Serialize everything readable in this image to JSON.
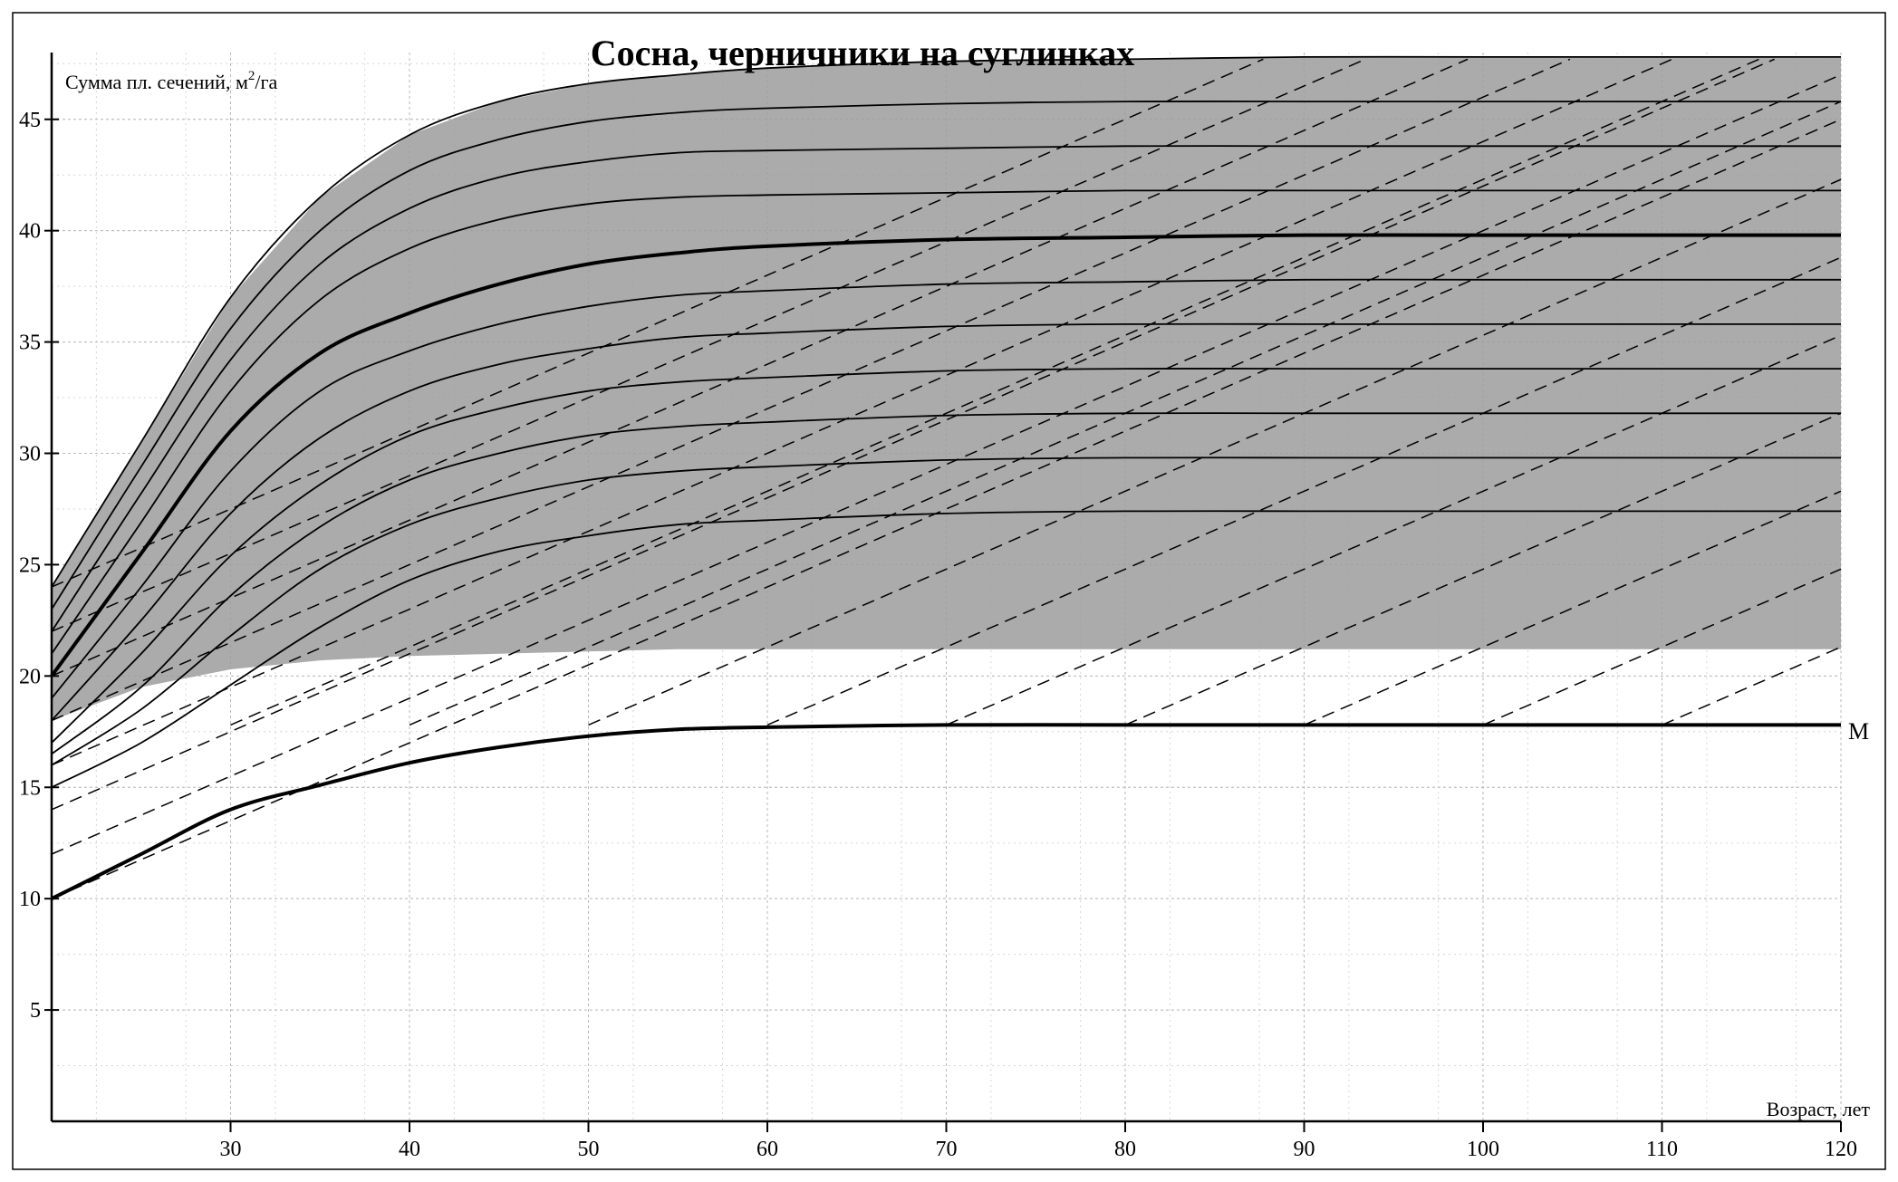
{
  "chart_data": {
    "type": "line",
    "title": "Сосна, черничники на суглинках",
    "ylabel_main": "Сумма пл. сечений, м",
    "ylabel_sup": "2",
    "ylabel_tail": "/га",
    "xlabel": "Возраст, лет",
    "xlim": [
      20,
      120
    ],
    "ylim": [
      0,
      48
    ],
    "x_ticks": [
      "30",
      "40",
      "50",
      "60",
      "70",
      "80",
      "90",
      "100",
      "110",
      "120"
    ],
    "y_ticks": [
      "5",
      "10",
      "15",
      "20",
      "25",
      "30",
      "35",
      "40",
      "45"
    ],
    "grid": true,
    "minimum_curve": {
      "name": "М",
      "x": [
        20,
        25,
        30,
        35,
        40,
        45,
        50,
        55,
        60,
        70,
        80,
        90,
        100,
        110,
        120
      ],
      "y": [
        10.0,
        12.0,
        14.0,
        15.1,
        16.1,
        16.8,
        17.3,
        17.6,
        17.7,
        17.8,
        17.8,
        17.8,
        17.8,
        17.8,
        17.8
      ]
    },
    "normal_curve": {
      "x": [
        20,
        25,
        30,
        35,
        40,
        45,
        50,
        55,
        60,
        70,
        80,
        90,
        100,
        110,
        120
      ],
      "y": [
        20.0,
        25.5,
        31.0,
        34.5,
        36.3,
        37.6,
        38.5,
        39.0,
        39.3,
        39.6,
        39.7,
        39.8,
        39.8,
        39.8,
        39.8
      ]
    },
    "density_curves": {
      "x": [
        20,
        25,
        30,
        35,
        40,
        45,
        50,
        55,
        60,
        70,
        80,
        90,
        100,
        110,
        120
      ],
      "series": [
        {
          "values": [
            24.0,
            30.5,
            37.0,
            41.5,
            44.3,
            45.8,
            46.6,
            47.0,
            47.3,
            47.6,
            47.7,
            47.8,
            47.8,
            47.8,
            47.8
          ]
        },
        {
          "values": [
            23.0,
            29.4,
            35.6,
            40.0,
            42.7,
            44.1,
            44.9,
            45.3,
            45.5,
            45.7,
            45.8,
            45.8,
            45.8,
            45.8,
            45.8
          ]
        },
        {
          "values": [
            22.0,
            28.2,
            34.2,
            38.5,
            41.0,
            42.4,
            43.1,
            43.5,
            43.6,
            43.7,
            43.8,
            43.8,
            43.8,
            43.8,
            43.8
          ]
        },
        {
          "values": [
            21.0,
            26.9,
            32.8,
            36.9,
            39.2,
            40.5,
            41.2,
            41.5,
            41.6,
            41.7,
            41.8,
            41.8,
            41.8,
            41.8,
            41.8
          ]
        },
        {
          "values": [
            19.0,
            24.0,
            29.2,
            32.8,
            34.6,
            35.8,
            36.6,
            37.1,
            37.3,
            37.6,
            37.7,
            37.8,
            37.8,
            37.8,
            37.8
          ]
        },
        {
          "values": [
            18.0,
            22.5,
            27.3,
            30.7,
            32.8,
            34.0,
            34.7,
            35.2,
            35.4,
            35.7,
            35.8,
            35.8,
            35.8,
            35.8,
            35.8
          ]
        },
        {
          "values": [
            17.0,
            21.0,
            25.4,
            28.6,
            30.8,
            32.0,
            32.8,
            33.2,
            33.4,
            33.7,
            33.8,
            33.8,
            33.8,
            33.8,
            33.8
          ]
        },
        {
          "values": [
            16.5,
            19.5,
            23.6,
            26.7,
            28.8,
            30.0,
            30.8,
            31.2,
            31.4,
            31.7,
            31.8,
            31.8,
            31.8,
            31.8,
            31.8
          ]
        },
        {
          "values": [
            16.0,
            18.5,
            21.8,
            24.8,
            26.8,
            28.0,
            28.8,
            29.2,
            29.4,
            29.7,
            29.8,
            29.8,
            29.8,
            29.8,
            29.8
          ]
        },
        {
          "values": [
            15.0,
            17.0,
            19.6,
            22.2,
            24.3,
            25.6,
            26.3,
            26.8,
            27.0,
            27.3,
            27.4,
            27.4,
            27.4,
            27.4,
            27.4
          ]
        }
      ]
    },
    "shaded_band": {
      "x": [
        20,
        25,
        30,
        35,
        40,
        45,
        50,
        55,
        60,
        70,
        80,
        90,
        100,
        110,
        120
      ],
      "upper": [
        24.0,
        30.5,
        37.0,
        41.5,
        44.3,
        45.8,
        46.6,
        47.0,
        47.3,
        47.6,
        47.7,
        47.8,
        47.8,
        47.8,
        47.8
      ],
      "lower": [
        18.0,
        19.5,
        20.3,
        20.7,
        20.9,
        21.0,
        21.1,
        21.2,
        21.2,
        21.2,
        21.2,
        21.2,
        21.2,
        21.2,
        21.2
      ]
    },
    "dashed_lines_slope": 0.35,
    "dashed_lines_start_y": [
      10,
      12,
      14,
      16,
      18,
      20,
      22,
      24
    ],
    "dashed_lines_start_x": [
      30,
      40,
      50,
      60,
      70,
      80,
      90,
      100,
      110
    ]
  }
}
